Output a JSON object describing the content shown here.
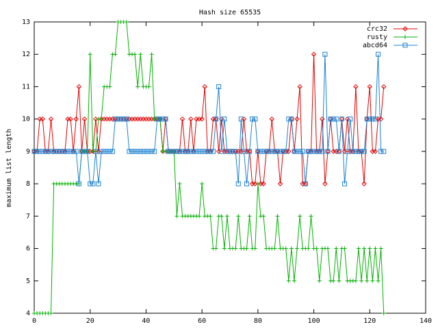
{
  "chart_data": {
    "type": "line",
    "title": "Hash size 65535",
    "y_label": "maximum list length",
    "xlim": [
      0,
      140
    ],
    "xticks": [
      0,
      20,
      40,
      60,
      80,
      100,
      120,
      140
    ],
    "ylim": [
      4,
      13
    ],
    "yticks": [
      4,
      5,
      6,
      7,
      8,
      9,
      10,
      11,
      12,
      13
    ],
    "grid": false,
    "legend": "top-right",
    "x": [
      0,
      1,
      2,
      3,
      4,
      5,
      6,
      7,
      8,
      9,
      10,
      11,
      12,
      13,
      14,
      15,
      16,
      17,
      18,
      19,
      20,
      21,
      22,
      23,
      24,
      25,
      26,
      27,
      28,
      29,
      30,
      31,
      32,
      33,
      34,
      35,
      36,
      37,
      38,
      39,
      40,
      41,
      42,
      43,
      44,
      45,
      46,
      47,
      48,
      49,
      50,
      51,
      52,
      53,
      54,
      55,
      56,
      57,
      58,
      59,
      60,
      61,
      62,
      63,
      64,
      65,
      66,
      67,
      68,
      69,
      70,
      71,
      72,
      73,
      74,
      75,
      76,
      77,
      78,
      79,
      80,
      81,
      82,
      83,
      84,
      85,
      86,
      87,
      88,
      89,
      90,
      91,
      92,
      93,
      94,
      95,
      96,
      97,
      98,
      99,
      100,
      101,
      102,
      103,
      104,
      105,
      106,
      107,
      108,
      109,
      110,
      111,
      112,
      113,
      114,
      115,
      116,
      117,
      118,
      119,
      120,
      121,
      122,
      123,
      124,
      125
    ],
    "series": [
      {
        "name": "crc32",
        "color": "#e00000",
        "marker": "diamond",
        "values": [
          9,
          9,
          10,
          10,
          9,
          9,
          10,
          9,
          9,
          9,
          9,
          9,
          10,
          10,
          9,
          10,
          11,
          9,
          10,
          9,
          9,
          9,
          10,
          9,
          10,
          10,
          10,
          10,
          10,
          10,
          10,
          10,
          10,
          10,
          10,
          10,
          10,
          10,
          10,
          10,
          10,
          10,
          10,
          10,
          10,
          10,
          9,
          10,
          9,
          9,
          9,
          9,
          9,
          10,
          9,
          9,
          10,
          9,
          10,
          10,
          10,
          11,
          9,
          9,
          10,
          10,
          9,
          10,
          9,
          9,
          9,
          9,
          9,
          9,
          9,
          10,
          9,
          9,
          8,
          8,
          9,
          8,
          8,
          9,
          9,
          10,
          9,
          9,
          8,
          9,
          9,
          9,
          10,
          9,
          10,
          11,
          8,
          8,
          9,
          9,
          12,
          9,
          9,
          10,
          8,
          9,
          10,
          9,
          9,
          9,
          10,
          9,
          10,
          9,
          9,
          11,
          9,
          9,
          8,
          10,
          11,
          9,
          9,
          10,
          10,
          11
        ]
      },
      {
        "name": "rusty",
        "color": "#00b000",
        "marker": "plus",
        "values": [
          4,
          4,
          4,
          4,
          4,
          4,
          4,
          8,
          8,
          8,
          8,
          8,
          8,
          8,
          8,
          8,
          8,
          9,
          9,
          9,
          12,
          9,
          9,
          10,
          10,
          11,
          11,
          11,
          12,
          12,
          13,
          13,
          13,
          13,
          12,
          12,
          12,
          11,
          12,
          11,
          11,
          11,
          12,
          10,
          10,
          10,
          9,
          9,
          9,
          9,
          9,
          7,
          8,
          7,
          7,
          7,
          7,
          7,
          7,
          7,
          8,
          7,
          7,
          7,
          6,
          6,
          7,
          7,
          6,
          7,
          6,
          6,
          6,
          7,
          6,
          6,
          6,
          7,
          6,
          6,
          8,
          7,
          7,
          6,
          6,
          6,
          6,
          7,
          6,
          6,
          6,
          5,
          6,
          5,
          6,
          7,
          6,
          6,
          6,
          7,
          6,
          6,
          5,
          6,
          6,
          6,
          5,
          5,
          6,
          5,
          6,
          6,
          5,
          5,
          5,
          5,
          6,
          5,
          6,
          5,
          6,
          5,
          6,
          5,
          6,
          4
        ]
      },
      {
        "name": "abcd64",
        "color": "#1a80d0",
        "marker": "square",
        "values": [
          9,
          9,
          9,
          9,
          9,
          9,
          9,
          9,
          9,
          9,
          9,
          9,
          9,
          9,
          9,
          9,
          8,
          9,
          9,
          9,
          8,
          8,
          9,
          8,
          9,
          9,
          9,
          9,
          9,
          10,
          10,
          10,
          10,
          10,
          9,
          9,
          9,
          9,
          9,
          9,
          9,
          9,
          9,
          9,
          10,
          10,
          10,
          10,
          9,
          9,
          9,
          9,
          9,
          9,
          9,
          9,
          9,
          9,
          9,
          9,
          9,
          9,
          9,
          9,
          9,
          10,
          11,
          9,
          10,
          9,
          9,
          9,
          9,
          8,
          10,
          9,
          8,
          9,
          10,
          10,
          9,
          9,
          9,
          9,
          9,
          9,
          9,
          9,
          9,
          9,
          9,
          10,
          10,
          9,
          9,
          9,
          9,
          8,
          9,
          9,
          9,
          9,
          9,
          9,
          12,
          9,
          10,
          10,
          10,
          9,
          10,
          8,
          9,
          10,
          9,
          9,
          9,
          9,
          9,
          10,
          10,
          10,
          10,
          12,
          9,
          9
        ]
      }
    ]
  }
}
